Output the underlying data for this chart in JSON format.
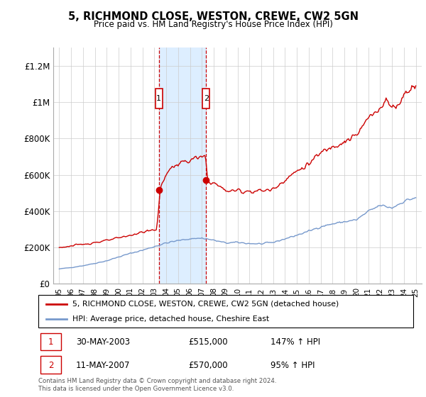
{
  "title": "5, RICHMOND CLOSE, WESTON, CREWE, CW2 5GN",
  "subtitle": "Price paid vs. HM Land Registry's House Price Index (HPI)",
  "legend_line1": "5, RICHMOND CLOSE, WESTON, CREWE, CW2 5GN (detached house)",
  "legend_line2": "HPI: Average price, detached house, Cheshire East",
  "footnote": "Contains HM Land Registry data © Crown copyright and database right 2024.\nThis data is licensed under the Open Government Licence v3.0.",
  "sale1_date": "30-MAY-2003",
  "sale1_price": "£515,000",
  "sale1_hpi": "147% ↑ HPI",
  "sale2_date": "11-MAY-2007",
  "sale2_price": "£570,000",
  "sale2_hpi": "95% ↑ HPI",
  "ylim": [
    0,
    1300000
  ],
  "yticks": [
    0,
    200000,
    400000,
    600000,
    800000,
    1000000,
    1200000
  ],
  "ytick_labels": [
    "£0",
    "£200K",
    "£400K",
    "£600K",
    "£800K",
    "£1M",
    "£1.2M"
  ],
  "sale1_x": 2003.38,
  "sale1_y": 515000,
  "sale2_x": 2007.36,
  "sale2_y": 570000,
  "shade_color": "#ddeeff",
  "red_color": "#cc0000",
  "blue_color": "#7799cc",
  "marker_box_color": "#cc0000",
  "xmin": 1995.0,
  "xmax": 2025.5
}
